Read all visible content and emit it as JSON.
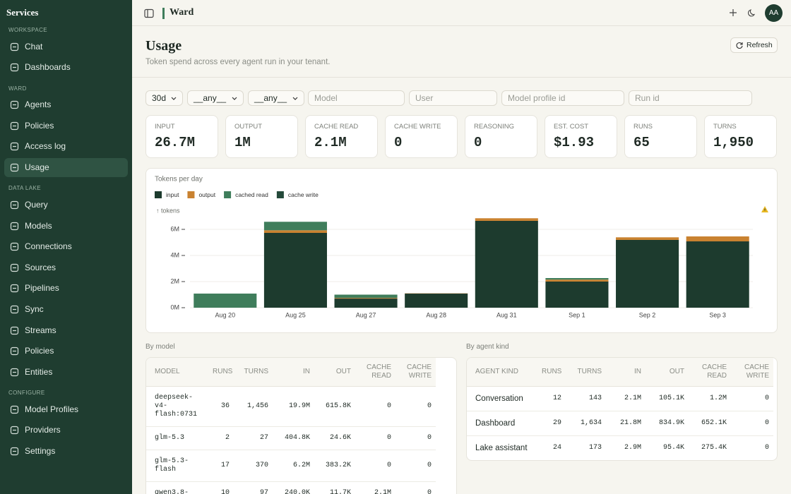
{
  "sidebar": {
    "title": "Services",
    "sections": [
      {
        "label": "WORKSPACE",
        "items": [
          {
            "label": "Chat"
          },
          {
            "label": "Dashboards"
          }
        ]
      },
      {
        "label": "WARD",
        "items": [
          {
            "label": "Agents"
          },
          {
            "label": "Policies"
          },
          {
            "label": "Access log"
          },
          {
            "label": "Usage",
            "active": true
          }
        ]
      },
      {
        "label": "DATA LAKE",
        "items": [
          {
            "label": "Query"
          },
          {
            "label": "Models"
          },
          {
            "label": "Connections"
          },
          {
            "label": "Sources"
          },
          {
            "label": "Pipelines"
          },
          {
            "label": "Sync"
          },
          {
            "label": "Streams"
          },
          {
            "label": "Policies"
          },
          {
            "label": "Entities"
          }
        ]
      },
      {
        "label": "CONFIGURE",
        "items": [
          {
            "label": "Model Profiles"
          },
          {
            "label": "Providers"
          },
          {
            "label": "Settings"
          }
        ]
      }
    ]
  },
  "topbar": {
    "title": "Ward",
    "avatar": "AA"
  },
  "header": {
    "title": "Usage",
    "subtitle": "Token spend across every agent run in your tenant.",
    "refresh": "Refresh"
  },
  "filters": {
    "selects": [
      "30d",
      "__any__",
      "__any__"
    ],
    "inputs": [
      "Model",
      "User",
      "Model profile id",
      "Run id"
    ]
  },
  "stats": [
    {
      "label": "INPUT",
      "value": "26.7M"
    },
    {
      "label": "OUTPUT",
      "value": "1M"
    },
    {
      "label": "CACHE READ",
      "value": "2.1M"
    },
    {
      "label": "CACHE WRITE",
      "value": "0"
    },
    {
      "label": "REASONING",
      "value": "0"
    },
    {
      "label": "EST. COST",
      "value": "$1.93"
    },
    {
      "label": "RUNS",
      "value": "65"
    },
    {
      "label": "TURNS",
      "value": "1,950"
    }
  ],
  "chart_data": {
    "type": "bar",
    "stacked": true,
    "title": "Tokens per day",
    "y_label": "↑ tokens",
    "categories": [
      "Aug 20",
      "Aug 25",
      "Aug 27",
      "Aug 28",
      "Aug 31",
      "Sep 1",
      "Sep 2",
      "Sep 3"
    ],
    "series": [
      {
        "name": "input",
        "color": "#1d3b2e",
        "values": [
          0,
          5730000,
          700000,
          1080000,
          6650000,
          2000000,
          5190000,
          5080000
        ]
      },
      {
        "name": "output",
        "color": "#c98230",
        "values": [
          0,
          200000,
          50000,
          20000,
          200000,
          150000,
          200000,
          380000
        ]
      },
      {
        "name": "cached read",
        "color": "#3f7d5b",
        "values": [
          1080000,
          650000,
          250000,
          0,
          0,
          120000,
          0,
          0
        ]
      },
      {
        "name": "cache write",
        "color": "#24493a",
        "values": [
          0,
          0,
          0,
          0,
          0,
          0,
          0,
          0
        ]
      }
    ],
    "ylim": [
      0,
      7000000
    ],
    "yticks": [
      {
        "value": 0,
        "label": "0M"
      },
      {
        "value": 2000000,
        "label": "2M"
      },
      {
        "value": 4000000,
        "label": "4M"
      },
      {
        "value": 6000000,
        "label": "6M"
      }
    ],
    "grid": true
  },
  "tables": [
    {
      "title": "By model",
      "columns": [
        "MODEL",
        "RUNS",
        "TURNS",
        "IN",
        "OUT",
        "CACHE READ",
        "CACHE WRITE"
      ],
      "rows": [
        [
          "deepseek-v4-flash:0731",
          "36",
          "1,456",
          "19.9M",
          "615.8K",
          "0",
          "0"
        ],
        [
          "glm-5.3",
          "2",
          "27",
          "404.8K",
          "24.6K",
          "0",
          "0"
        ],
        [
          "glm-5.3-flash",
          "17",
          "370",
          "6.2M",
          "383.2K",
          "0",
          "0"
        ],
        [
          "qwen3.8-",
          "10",
          "97",
          "240.0K",
          "11.7K",
          "2.1M",
          "0"
        ]
      ]
    },
    {
      "title": "By agent kind",
      "columns": [
        "AGENT KIND",
        "RUNS",
        "TURNS",
        "IN",
        "OUT",
        "CACHE READ",
        "CACHE WRITE"
      ],
      "rows": [
        [
          "Conversation",
          "12",
          "143",
          "2.1M",
          "105.1K",
          "1.2M",
          "0"
        ],
        [
          "Dashboard",
          "29",
          "1,634",
          "21.8M",
          "834.9K",
          "652.1K",
          "0"
        ],
        [
          "Lake assistant",
          "24",
          "173",
          "2.9M",
          "95.4K",
          "275.4K",
          "0"
        ]
      ]
    }
  ]
}
